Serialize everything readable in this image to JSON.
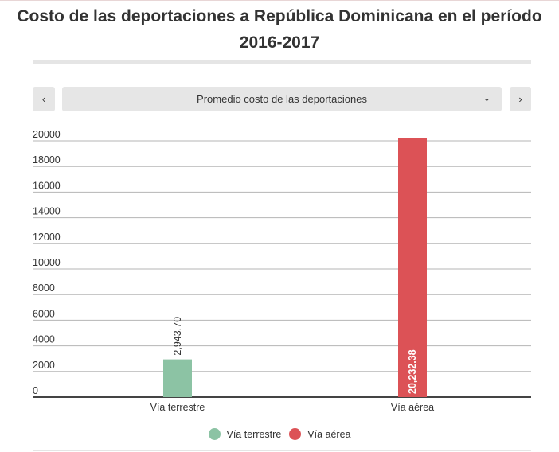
{
  "title": "Costo de las deportaciones a República Dominicana en el período 2016-2017",
  "controls": {
    "prev_label": "‹",
    "next_label": "›",
    "selected_option": "Promedio costo de las deportaciones",
    "chevron": "⌄"
  },
  "chart_data": {
    "type": "bar",
    "categories": [
      "Vía terrestre",
      "Vía aérea"
    ],
    "series": [
      {
        "name": "Vía terrestre",
        "values": [
          2943.7,
          null
        ],
        "color": "#8cc3a4",
        "data_labels": [
          "2,943.70",
          ""
        ]
      },
      {
        "name": "Vía aérea",
        "values": [
          null,
          20232.38
        ],
        "color": "#dc5256",
        "data_labels": [
          "",
          "20,232.38"
        ]
      }
    ],
    "yticks": [
      0,
      2000,
      4000,
      6000,
      8000,
      10000,
      12000,
      14000,
      16000,
      18000,
      20000
    ],
    "ylim": [
      0,
      20000
    ],
    "grid": true,
    "legend_position": "bottom"
  }
}
